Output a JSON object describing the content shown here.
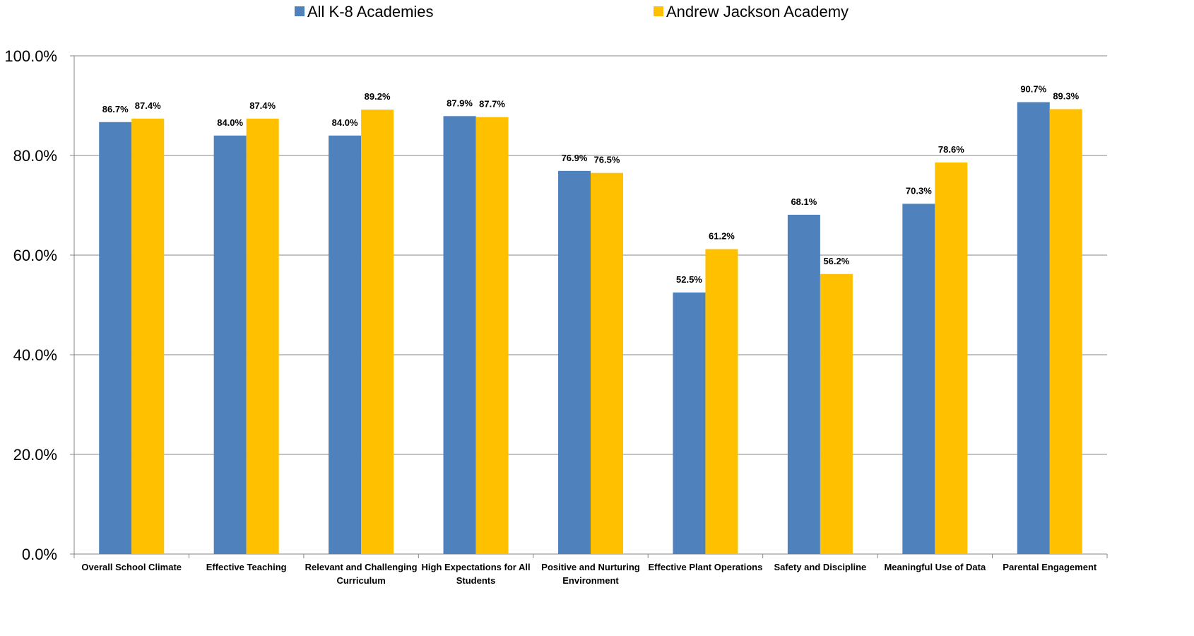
{
  "chart_data": {
    "type": "bar",
    "categories": [
      [
        "Overall School Climate"
      ],
      [
        "Effective Teaching"
      ],
      [
        "Relevant and Challenging",
        "Curriculum"
      ],
      [
        "High Expectations for All",
        "Students"
      ],
      [
        "Positive and Nurturing",
        "Environment"
      ],
      [
        "Effective Plant Operations"
      ],
      [
        "Safety and Discipline"
      ],
      [
        "Meaningful Use of Data"
      ],
      [
        "Parental Engagement"
      ]
    ],
    "series": [
      {
        "name": "All K-8 Academies",
        "color": "#4F81BD",
        "values": [
          86.7,
          84.0,
          84.0,
          87.9,
          76.9,
          52.5,
          68.1,
          70.3,
          90.7
        ],
        "labels": [
          "86.7%",
          "84.0%",
          "84.0%",
          "87.9%",
          "76.9%",
          "52.5%",
          "68.1%",
          "70.3%",
          "90.7%"
        ]
      },
      {
        "name": "Andrew Jackson Academy",
        "color": "#FFC000",
        "values": [
          87.4,
          87.4,
          89.2,
          87.7,
          76.5,
          61.2,
          56.2,
          78.6,
          89.3
        ],
        "labels": [
          "87.4%",
          "87.4%",
          "89.2%",
          "87.7%",
          "76.5%",
          "61.2%",
          "56.2%",
          "78.6%",
          "89.3%"
        ]
      }
    ],
    "ylim": [
      0,
      100
    ],
    "yticks": [
      0,
      20,
      40,
      60,
      80,
      100
    ],
    "ytick_labels": [
      "0.0%",
      "20.0%",
      "40.0%",
      "60.0%",
      "80.0%",
      "100.0%"
    ],
    "grid": true,
    "legend_position": "top"
  }
}
